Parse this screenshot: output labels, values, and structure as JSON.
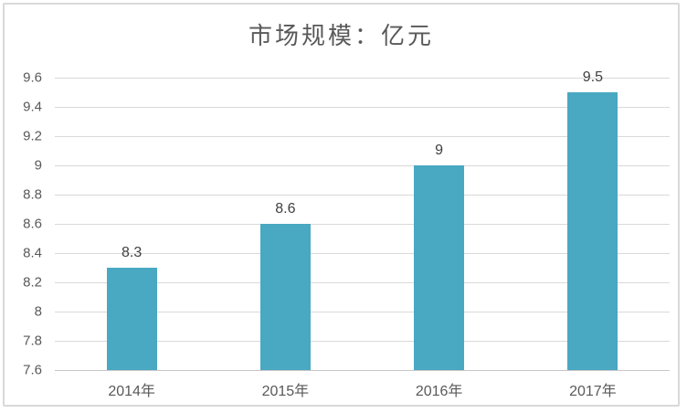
{
  "chart_data": {
    "type": "bar",
    "title": "市场规模：亿元",
    "categories": [
      "2014年",
      "2015年",
      "2016年",
      "2017年"
    ],
    "values": [
      8.3,
      8.6,
      9,
      9.5
    ],
    "value_labels": [
      "8.3",
      "8.6",
      "9",
      "9.5"
    ],
    "ylim": [
      7.6,
      9.6
    ],
    "ytick_step": 0.2,
    "ytick_labels_top_to_bottom": [
      "9.6",
      "9.4",
      "9.2",
      "9",
      "8.8",
      "8.6",
      "8.4",
      "8.2",
      "8",
      "7.8",
      "7.6"
    ],
    "grid": true,
    "legend_position": "none",
    "xlabel": "",
    "ylabel": "",
    "colors": {
      "bar_fill": "#49A8C2",
      "gridline": "#D9D9D9",
      "axis_line": "#C6C6C6",
      "title_text": "#595959",
      "tick_text": "#595959",
      "data_label_text": "#404040",
      "frame_border": "#D9D9D9",
      "background": "#FFFFFF"
    }
  }
}
